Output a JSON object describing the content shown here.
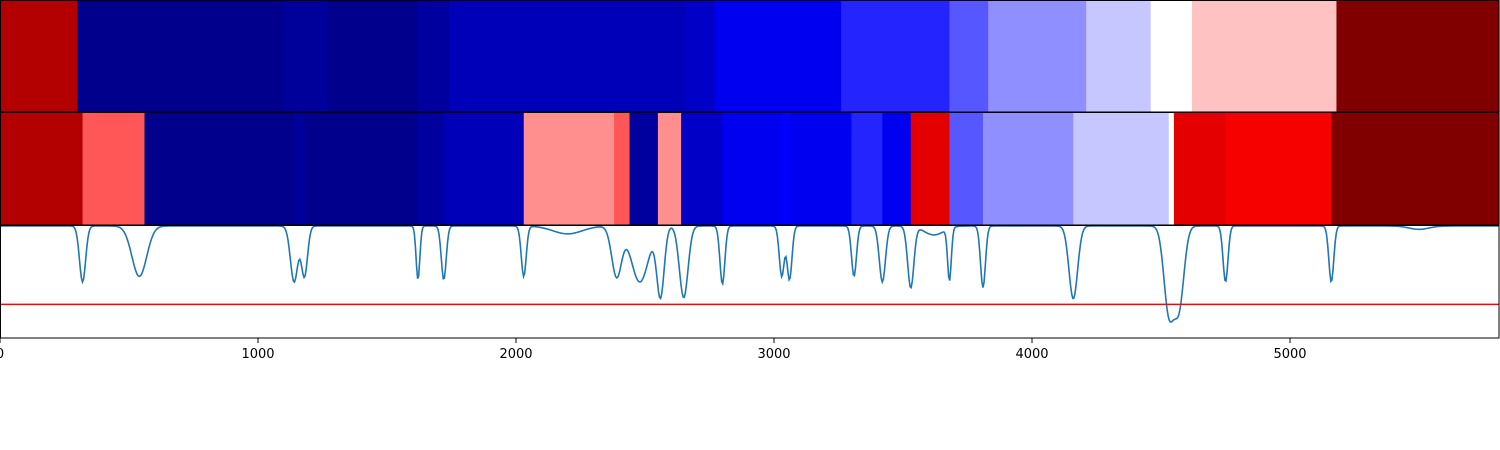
{
  "chart_data": [
    {
      "type": "heatmap",
      "name": "segmentation-row-1",
      "colormap": "seismic",
      "segments": [
        {
          "start": 0,
          "end": 300,
          "value": 0.8
        },
        {
          "start": 300,
          "end": 1100,
          "value": -0.82
        },
        {
          "start": 1100,
          "end": 1270,
          "value": -0.78
        },
        {
          "start": 1270,
          "end": 1620,
          "value": -0.82
        },
        {
          "start": 1620,
          "end": 1740,
          "value": -0.77
        },
        {
          "start": 1740,
          "end": 2660,
          "value": -0.7
        },
        {
          "start": 2660,
          "end": 2770,
          "value": -0.66
        },
        {
          "start": 2770,
          "end": 3260,
          "value": -0.54
        },
        {
          "start": 3260,
          "end": 3680,
          "value": -0.43
        },
        {
          "start": 3680,
          "end": 3830,
          "value": -0.33
        },
        {
          "start": 3830,
          "end": 4210,
          "value": -0.22
        },
        {
          "start": 4210,
          "end": 4460,
          "value": -0.11
        },
        {
          "start": 4460,
          "end": 4620,
          "value": 0.0
        },
        {
          "start": 4620,
          "end": 5180,
          "value": 0.12
        },
        {
          "start": 5180,
          "end": 5810,
          "value": 1.0
        }
      ]
    },
    {
      "type": "heatmap",
      "name": "segmentation-row-2",
      "colormap": "seismic",
      "segments": [
        {
          "start": 0,
          "end": 320,
          "value": 0.8
        },
        {
          "start": 320,
          "end": 560,
          "value": 0.33
        },
        {
          "start": 560,
          "end": 1140,
          "value": -0.82
        },
        {
          "start": 1140,
          "end": 1180,
          "value": -0.78
        },
        {
          "start": 1180,
          "end": 1620,
          "value": -0.82
        },
        {
          "start": 1620,
          "end": 1720,
          "value": -0.77
        },
        {
          "start": 1720,
          "end": 2030,
          "value": -0.7
        },
        {
          "start": 2030,
          "end": 2380,
          "value": 0.22
        },
        {
          "start": 2380,
          "end": 2440,
          "value": 0.33
        },
        {
          "start": 2440,
          "end": 2550,
          "value": -0.77
        },
        {
          "start": 2550,
          "end": 2640,
          "value": 0.22
        },
        {
          "start": 2640,
          "end": 2800,
          "value": -0.66
        },
        {
          "start": 2800,
          "end": 3030,
          "value": -0.54
        },
        {
          "start": 3030,
          "end": 3060,
          "value": -0.5
        },
        {
          "start": 3060,
          "end": 3300,
          "value": -0.54
        },
        {
          "start": 3300,
          "end": 3420,
          "value": -0.43
        },
        {
          "start": 3420,
          "end": 3530,
          "value": -0.54
        },
        {
          "start": 3530,
          "end": 3680,
          "value": 0.6
        },
        {
          "start": 3680,
          "end": 3810,
          "value": -0.33
        },
        {
          "start": 3810,
          "end": 4160,
          "value": -0.22
        },
        {
          "start": 4160,
          "end": 4530,
          "value": -0.11
        },
        {
          "start": 4530,
          "end": 4550,
          "value": 0.0
        },
        {
          "start": 4550,
          "end": 4750,
          "value": 0.6
        },
        {
          "start": 4750,
          "end": 5160,
          "value": 0.53
        },
        {
          "start": 5160,
          "end": 5810,
          "value": 1.0
        }
      ]
    },
    {
      "type": "line",
      "name": "score-line",
      "line_color": "#1f77b4",
      "threshold": 0.3,
      "threshold_color": "#ff0000",
      "ylim": [
        0,
        1.0
      ],
      "baseline": 1.0,
      "dips": [
        {
          "c": 320,
          "w": 25,
          "depth": 0.5
        },
        {
          "c": 540,
          "w": 60,
          "depth": 0.45
        },
        {
          "c": 1140,
          "w": 30,
          "depth": 0.5
        },
        {
          "c": 1180,
          "w": 25,
          "depth": 0.45
        },
        {
          "c": 1620,
          "w": 15,
          "depth": 0.48
        },
        {
          "c": 1720,
          "w": 20,
          "depth": 0.48
        },
        {
          "c": 2030,
          "w": 20,
          "depth": 0.45
        },
        {
          "c": 2200,
          "w": 120,
          "depth": 0.07
        },
        {
          "c": 2390,
          "w": 40,
          "depth": 0.45
        },
        {
          "c": 2480,
          "w": 70,
          "depth": 0.5
        },
        {
          "c": 2560,
          "w": 30,
          "depth": 0.62
        },
        {
          "c": 2650,
          "w": 35,
          "depth": 0.64
        },
        {
          "c": 2800,
          "w": 20,
          "depth": 0.52
        },
        {
          "c": 3030,
          "w": 20,
          "depth": 0.45
        },
        {
          "c": 3060,
          "w": 20,
          "depth": 0.48
        },
        {
          "c": 3310,
          "w": 20,
          "depth": 0.45
        },
        {
          "c": 3420,
          "w": 25,
          "depth": 0.5
        },
        {
          "c": 3530,
          "w": 25,
          "depth": 0.55
        },
        {
          "c": 3620,
          "w": 80,
          "depth": 0.08
        },
        {
          "c": 3680,
          "w": 15,
          "depth": 0.47
        },
        {
          "c": 3810,
          "w": 20,
          "depth": 0.55
        },
        {
          "c": 4160,
          "w": 35,
          "depth": 0.65
        },
        {
          "c": 4530,
          "w": 40,
          "depth": 0.75
        },
        {
          "c": 4570,
          "w": 40,
          "depth": 0.7
        },
        {
          "c": 4750,
          "w": 20,
          "depth": 0.5
        },
        {
          "c": 5160,
          "w": 20,
          "depth": 0.5
        },
        {
          "c": 5500,
          "w": 80,
          "depth": 0.03
        }
      ]
    }
  ],
  "xaxis": {
    "xlim": [
      0,
      5810
    ],
    "ticks": [
      {
        "value": 0,
        "label": "0"
      },
      {
        "value": 1000,
        "label": "1000"
      },
      {
        "value": 2000,
        "label": "2000"
      },
      {
        "value": 3000,
        "label": "3000"
      },
      {
        "value": 4000,
        "label": "4000"
      },
      {
        "value": 5000,
        "label": "5000"
      }
    ]
  }
}
